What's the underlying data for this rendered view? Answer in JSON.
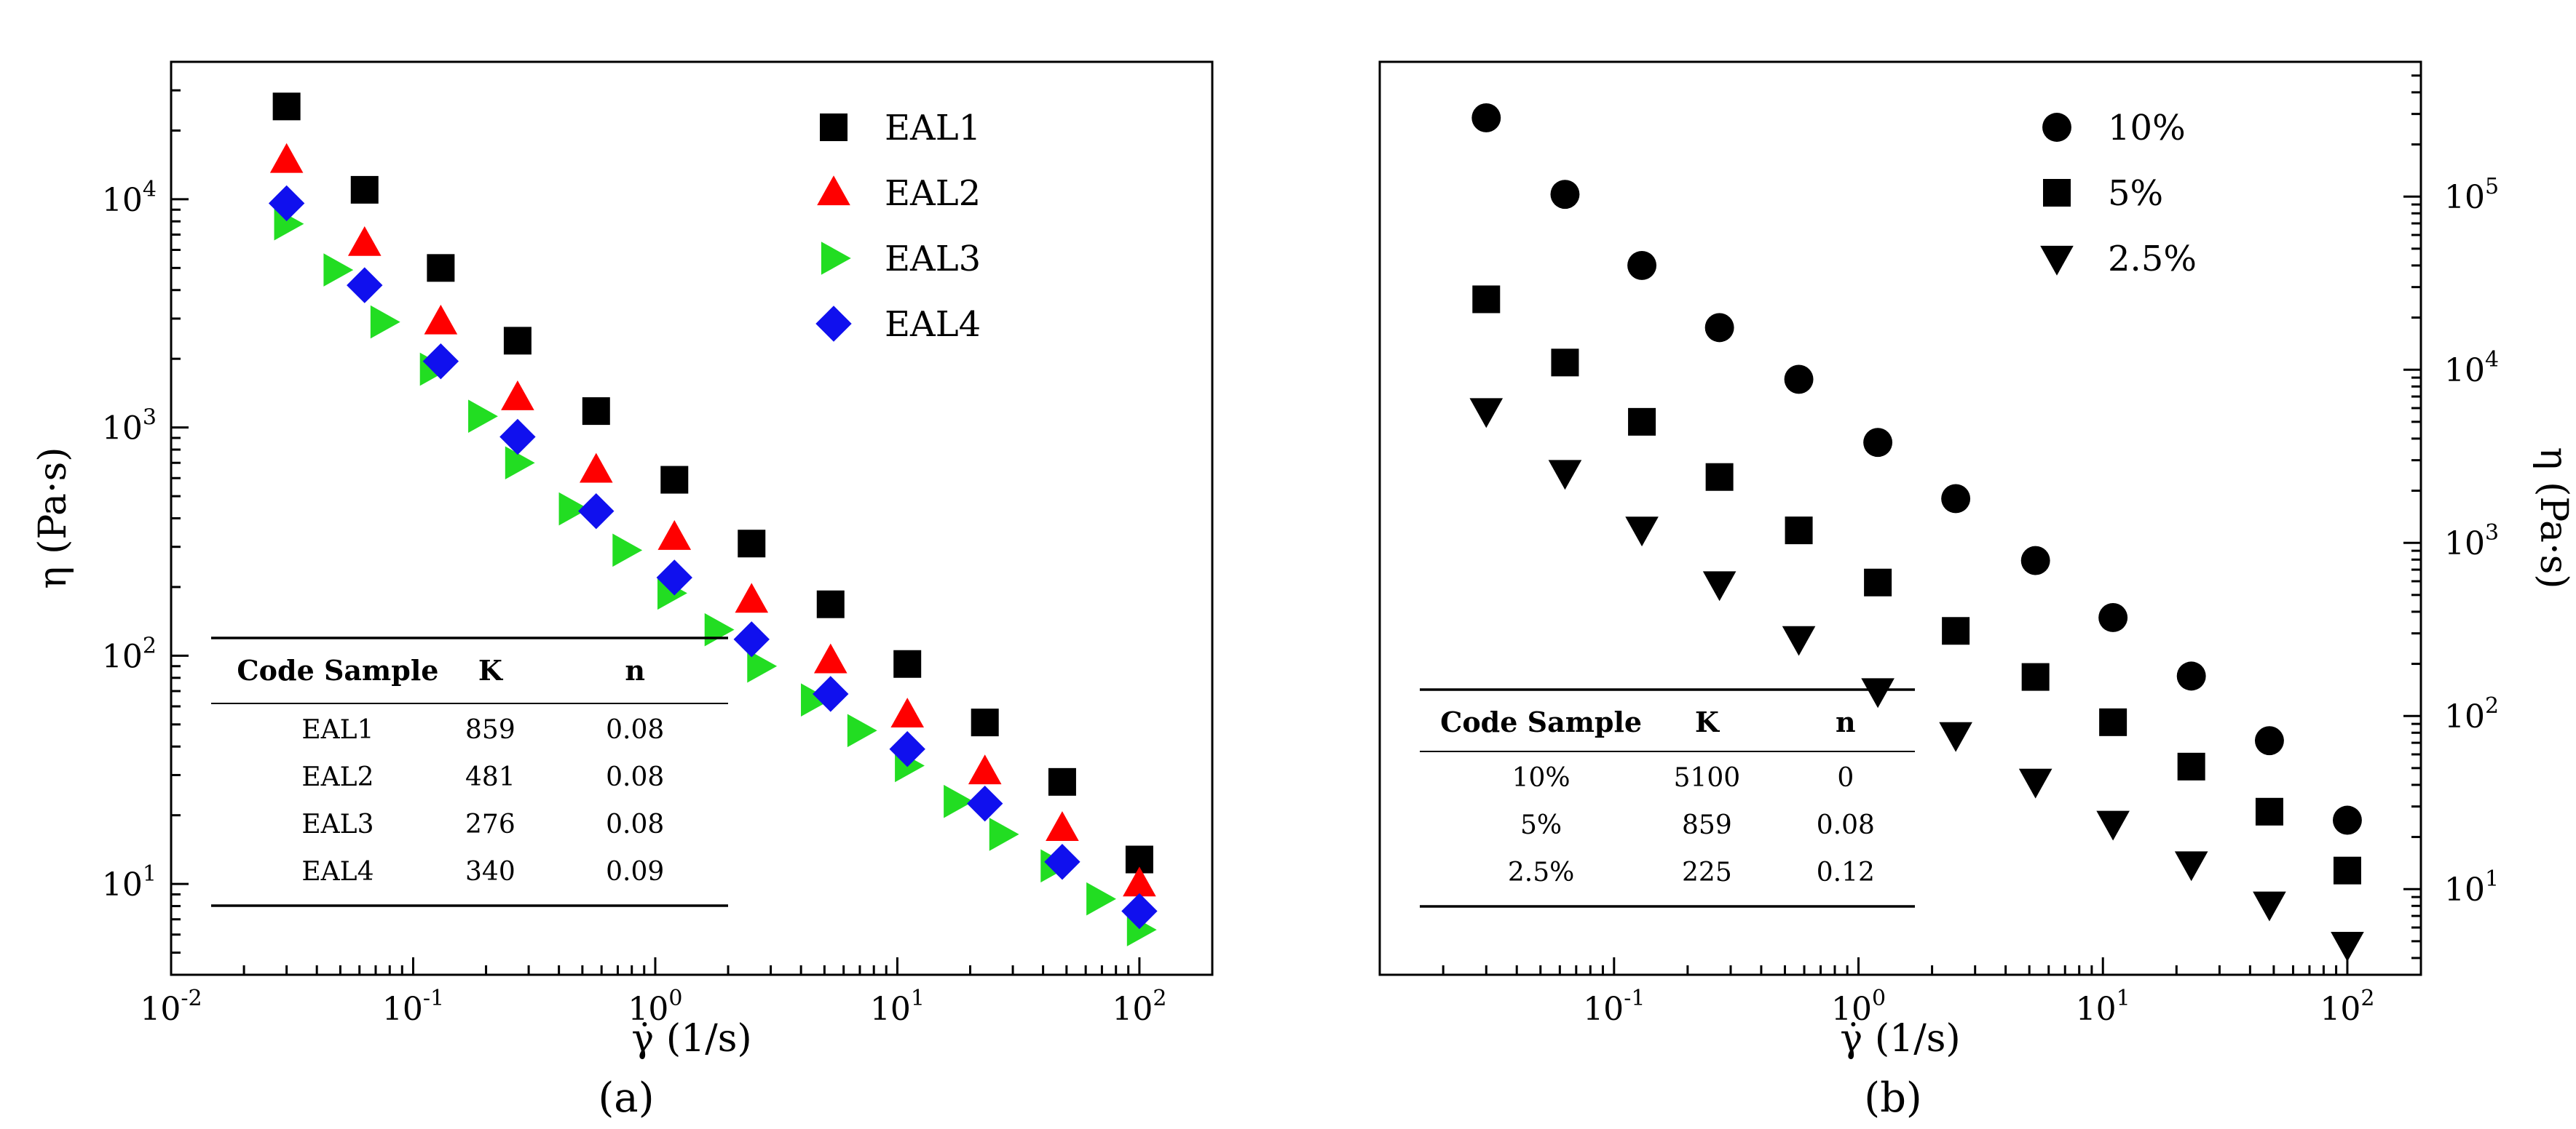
{
  "figure": {
    "panel_labels": [
      "(a)",
      "(b)"
    ]
  },
  "chart_data": [
    {
      "type": "scatter",
      "panel": "(a)",
      "xlabel": "γ̇ (1/s)",
      "ylabel": "η (Pa·s)",
      "x_scale": "log",
      "y_scale": "log",
      "xlim": [
        0.01,
        200
      ],
      "ylim": [
        4,
        40000
      ],
      "x_ticks": [
        {
          "v": 0.01,
          "base": "10",
          "exp": "-2"
        },
        {
          "v": 0.1,
          "base": "10",
          "exp": "-1"
        },
        {
          "v": 1,
          "base": "10",
          "exp": "0"
        },
        {
          "v": 10,
          "base": "10",
          "exp": "1"
        },
        {
          "v": 100,
          "base": "10",
          "exp": "2"
        }
      ],
      "y_ticks": [
        {
          "v": 10,
          "base": "10",
          "exp": "1"
        },
        {
          "v": 100,
          "base": "10",
          "exp": "2"
        },
        {
          "v": 1000,
          "base": "10",
          "exp": "3"
        },
        {
          "v": 10000,
          "base": "10",
          "exp": "4"
        }
      ],
      "y_axis_side": "left",
      "grid": false,
      "legend_position": "top-right",
      "series": [
        {
          "name": "EAL1",
          "marker": "square",
          "color": "#000000",
          "x": [
            0.03,
            0.063,
            0.13,
            0.27,
            0.57,
            1.2,
            2.5,
            5.3,
            11,
            23,
            48,
            100
          ],
          "y": [
            25500,
            11000,
            5000,
            2400,
            1180,
            590,
            310,
            168,
            92,
            51,
            28,
            12.8
          ]
        },
        {
          "name": "EAL2",
          "marker": "triangle-up",
          "color": "#ff0000",
          "x": [
            0.03,
            0.063,
            0.13,
            0.27,
            0.57,
            1.2,
            2.5,
            5.3,
            11,
            23,
            48,
            100
          ],
          "y": [
            14800,
            6400,
            2900,
            1350,
            650,
            330,
            175,
            95,
            55,
            31,
            17.5,
            10
          ]
        },
        {
          "name": "EAL3",
          "marker": "triangle-right",
          "color": "#22dd22",
          "x": [
            0.03,
            0.048,
            0.075,
            0.12,
            0.19,
            0.27,
            0.45,
            0.75,
            1.15,
            1.8,
            2.7,
            4.5,
            7,
            11,
            17.5,
            27,
            44,
            68,
            100
          ],
          "y": [
            7800,
            4900,
            2900,
            1800,
            1120,
            700,
            440,
            290,
            188,
            130,
            90,
            64,
            47,
            33,
            23,
            16.5,
            12,
            8.6,
            6.3
          ]
        },
        {
          "name": "EAL4",
          "marker": "diamond",
          "color": "#1010ee",
          "x": [
            0.03,
            0.063,
            0.13,
            0.27,
            0.57,
            1.2,
            2.5,
            5.3,
            11,
            23,
            48,
            100
          ],
          "y": [
            9600,
            4200,
            1950,
            910,
            430,
            220,
            118,
            68,
            39,
            22.5,
            12.5,
            7.6
          ]
        }
      ],
      "table": {
        "columns": [
          "Code Sample",
          "K",
          "n"
        ],
        "rows": [
          [
            "EAL1",
            "859",
            "0.08"
          ],
          [
            "EAL2",
            "481",
            "0.08"
          ],
          [
            "EAL3",
            "276",
            "0.08"
          ],
          [
            "EAL4",
            "340",
            "0.09"
          ]
        ]
      }
    },
    {
      "type": "scatter",
      "panel": "(b)",
      "xlabel": "γ̇ (1/s)",
      "ylabel": "η (Pa·s)",
      "x_scale": "log",
      "y_scale": "log",
      "xlim": [
        0.011,
        200
      ],
      "ylim": [
        3.2,
        600000
      ],
      "x_ticks": [
        {
          "v": 0.1,
          "base": "10",
          "exp": "-1"
        },
        {
          "v": 1,
          "base": "10",
          "exp": "0"
        },
        {
          "v": 10,
          "base": "10",
          "exp": "1"
        },
        {
          "v": 100,
          "base": "10",
          "exp": "2"
        }
      ],
      "y_ticks": [
        {
          "v": 10,
          "base": "10",
          "exp": "1"
        },
        {
          "v": 100,
          "base": "10",
          "exp": "2"
        },
        {
          "v": 1000,
          "base": "10",
          "exp": "3"
        },
        {
          "v": 10000,
          "base": "10",
          "exp": "4"
        },
        {
          "v": 100000,
          "base": "10",
          "exp": "5"
        }
      ],
      "y_axis_side": "right",
      "grid": false,
      "legend_position": "top-right",
      "series": [
        {
          "name": "10%",
          "marker": "circle",
          "color": "#000000",
          "x": [
            0.03,
            0.063,
            0.13,
            0.27,
            0.57,
            1.2,
            2.5,
            5.3,
            11,
            23,
            48,
            100
          ],
          "y": [
            285000,
            103000,
            40000,
            17500,
            8800,
            3800,
            1800,
            790,
            370,
            170,
            72,
            25
          ]
        },
        {
          "name": "5%",
          "marker": "square",
          "color": "#000000",
          "x": [
            0.03,
            0.063,
            0.13,
            0.27,
            0.57,
            1.2,
            2.5,
            5.3,
            11,
            23,
            48,
            100
          ],
          "y": [
            25500,
            11000,
            5000,
            2400,
            1180,
            590,
            310,
            168,
            92,
            51,
            28,
            12.8
          ]
        },
        {
          "name": "2.5%",
          "marker": "triangle-down",
          "color": "#000000",
          "x": [
            0.03,
            0.063,
            0.13,
            0.27,
            0.57,
            1.2,
            2.5,
            5.3,
            11,
            23,
            48,
            100
          ],
          "y": [
            5800,
            2550,
            1200,
            580,
            280,
            140,
            78,
            42,
            24,
            14,
            8.2,
            4.8
          ]
        }
      ],
      "table": {
        "columns": [
          "Code Sample",
          "K",
          "n"
        ],
        "rows": [
          [
            "10%",
            "5100",
            "0"
          ],
          [
            "5%",
            "859",
            "0.08"
          ],
          [
            "2.5%",
            "225",
            "0.12"
          ]
        ]
      }
    }
  ]
}
